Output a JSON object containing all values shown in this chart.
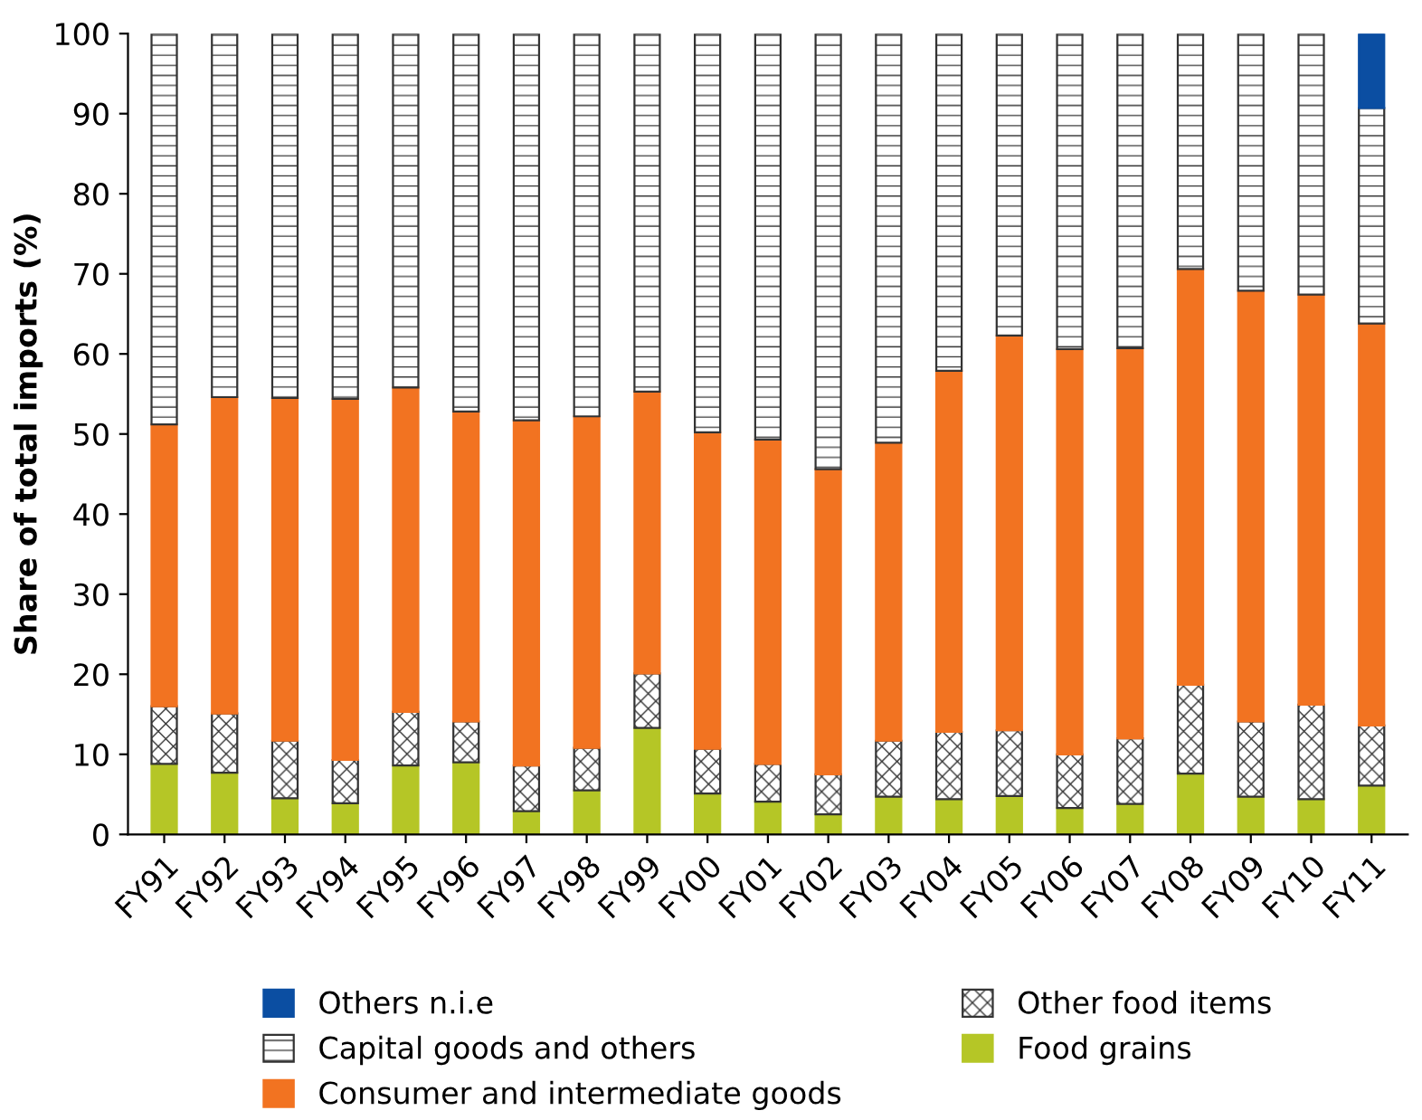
{
  "chart_data": {
    "type": "bar",
    "stacked": true,
    "ylabel": "Share of total imports (%)",
    "categories": [
      "FY91",
      "FY92",
      "FY93",
      "FY94",
      "FY95",
      "FY96",
      "FY97",
      "FY98",
      "FY99",
      "FY00",
      "FY01",
      "FY02",
      "FY03",
      "FY04",
      "FY05",
      "FY06",
      "FY07",
      "FY08",
      "FY09",
      "FY10",
      "FY11"
    ],
    "series": [
      {
        "name": "Food grains",
        "color": "#b5c626",
        "values": [
          8.8,
          7.7,
          4.5,
          3.9,
          8.6,
          9.0,
          2.9,
          5.5,
          13.3,
          5.1,
          4.1,
          2.5,
          4.7,
          4.4,
          4.8,
          3.3,
          3.8,
          7.6,
          4.7,
          4.4,
          6.1
        ]
      },
      {
        "name": "Other food items",
        "color": "#333333",
        "values": [
          7.2,
          7.4,
          7.2,
          5.4,
          6.7,
          5.1,
          5.7,
          5.3,
          6.8,
          5.6,
          4.7,
          5.0,
          7.0,
          8.4,
          8.2,
          6.7,
          8.2,
          11.1,
          9.4,
          11.8,
          7.5
        ]
      },
      {
        "name": "Consumer and intermediate goods",
        "color": "#f27321",
        "values": [
          35.2,
          39.5,
          42.8,
          45.1,
          40.5,
          38.7,
          43.1,
          41.4,
          35.2,
          39.5,
          40.5,
          38.1,
          37.2,
          45.1,
          49.3,
          50.6,
          48.7,
          51.9,
          53.8,
          51.2,
          50.2
        ]
      },
      {
        "name": "Capital goods and others",
        "color": "#333333",
        "values": [
          48.8,
          45.4,
          45.5,
          45.6,
          44.2,
          47.2,
          48.3,
          47.8,
          44.7,
          49.8,
          50.7,
          54.4,
          51.1,
          42.1,
          37.7,
          39.4,
          39.3,
          29.4,
          32.1,
          32.6,
          26.9
        ]
      },
      {
        "name": "Others n.i.e",
        "color": "#0b4ea2",
        "values": [
          null,
          null,
          null,
          null,
          null,
          null,
          null,
          null,
          null,
          null,
          null,
          null,
          null,
          null,
          null,
          null,
          null,
          null,
          null,
          null,
          9.3
        ]
      }
    ],
    "ylim": [
      0,
      100
    ],
    "yticks": [
      0,
      10,
      20,
      30,
      40,
      50,
      60,
      70,
      80,
      90,
      100
    ],
    "grid": false,
    "legend": "bottom"
  }
}
